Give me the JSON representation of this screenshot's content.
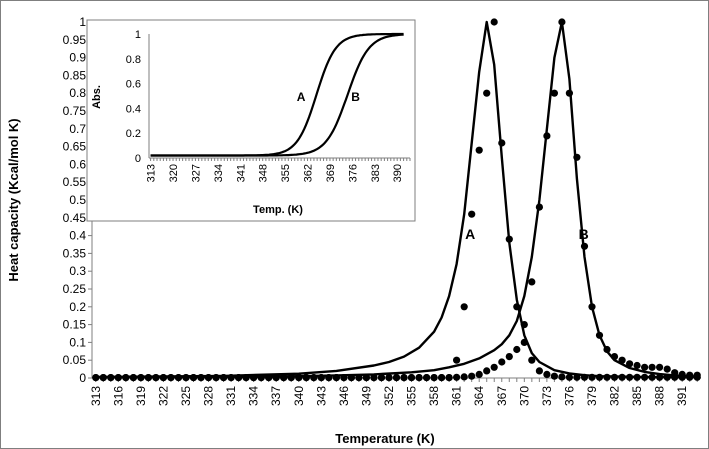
{
  "chart_data": [
    {
      "type": "line",
      "xlabel": "Temperature (K)",
      "ylabel": "Heat capacity (Kcal/mol K)",
      "ylim": [
        0,
        1
      ],
      "y_ticks": [
        "0",
        "0.05",
        "0.1",
        "0.15",
        "0.2",
        "0.25",
        "0.3",
        "0.35",
        "0.4",
        "0.45",
        "0.5",
        "0.55",
        "0.6",
        "0.65",
        "0.7",
        "0.75",
        "0.8",
        "0.85",
        "0.9",
        "0.95",
        "1"
      ],
      "x_ticks": [
        "313",
        "316",
        "319",
        "322",
        "325",
        "328",
        "331",
        "334",
        "337",
        "340",
        "343",
        "346",
        "349",
        "352",
        "355",
        "358",
        "361",
        "364",
        "367",
        "370",
        "373",
        "376",
        "379",
        "382",
        "385",
        "388",
        "391"
      ],
      "x_range": [
        312.5,
        393.5
      ],
      "series": [
        {
          "name": "A",
          "style": "line",
          "color": "#000000",
          "tm": 365,
          "x": [
            313,
            320,
            330,
            340,
            345,
            350,
            352,
            354,
            356,
            358,
            359,
            360,
            361,
            362,
            363,
            364,
            365,
            366,
            367,
            368,
            369,
            370,
            371,
            372,
            374,
            376,
            378,
            380,
            385,
            390,
            393
          ],
          "y": [
            0.003,
            0.004,
            0.006,
            0.012,
            0.02,
            0.035,
            0.045,
            0.06,
            0.085,
            0.13,
            0.17,
            0.23,
            0.32,
            0.46,
            0.66,
            0.86,
            1.0,
            0.88,
            0.62,
            0.38,
            0.22,
            0.12,
            0.07,
            0.045,
            0.022,
            0.013,
            0.008,
            0.005,
            0.003,
            0.002,
            0.002
          ]
        },
        {
          "name": "A",
          "style": "markers",
          "color": "#000000",
          "x": [
            313,
            314,
            315,
            316,
            317,
            318,
            319,
            320,
            321,
            322,
            323,
            324,
            325,
            326,
            327,
            328,
            329,
            330,
            331,
            332,
            333,
            334,
            335,
            336,
            337,
            338,
            339,
            340,
            341,
            342,
            343,
            344,
            345,
            346,
            347,
            348,
            349,
            350,
            351,
            352,
            353,
            354,
            355,
            356,
            357,
            358,
            359,
            360,
            361,
            362,
            363,
            364,
            365,
            366,
            367,
            368,
            369,
            370,
            371,
            372,
            373,
            374,
            375,
            376,
            377,
            378,
            379,
            380,
            381,
            382,
            383,
            384,
            385,
            386,
            387,
            388,
            389,
            390,
            391,
            392,
            393
          ],
          "y": [
            0.001,
            0.001,
            0.001,
            0.001,
            0.001,
            0.001,
            0.001,
            0.001,
            0.001,
            0.001,
            0.001,
            0.001,
            0.001,
            0.001,
            0.001,
            0.001,
            0.001,
            0.001,
            0.001,
            0.001,
            0.001,
            0.001,
            0.001,
            0.001,
            0.001,
            0.001,
            0.001,
            0.001,
            0.001,
            0.001,
            0.001,
            0.001,
            0.001,
            0.001,
            0.001,
            0.001,
            0.001,
            0.001,
            0.001,
            0.001,
            0.001,
            0.001,
            0.001,
            0.001,
            0.001,
            0.001,
            0.001,
            0.001,
            0.05,
            0.2,
            0.46,
            0.64,
            0.8,
            1.0,
            0.66,
            0.39,
            0.2,
            0.1,
            0.05,
            0.02,
            0.01,
            0.005,
            0.003,
            0.002,
            0.002,
            0.002,
            0.002,
            0.002,
            0.002,
            0.002,
            0.002,
            0.002,
            0.002,
            0.002,
            0.002,
            0.002,
            0.002,
            0.002,
            0.002,
            0.002,
            0.002
          ]
        },
        {
          "name": "B",
          "style": "line",
          "color": "#000000",
          "tm": 375,
          "x": [
            313,
            320,
            330,
            340,
            345,
            350,
            355,
            358,
            360,
            362,
            364,
            366,
            367,
            368,
            369,
            370,
            371,
            372,
            373,
            374,
            375,
            376,
            377,
            378,
            379,
            380,
            381,
            382,
            384,
            386,
            388,
            390,
            393
          ],
          "y": [
            0.002,
            0.002,
            0.003,
            0.005,
            0.007,
            0.01,
            0.016,
            0.022,
            0.03,
            0.04,
            0.055,
            0.078,
            0.095,
            0.12,
            0.16,
            0.23,
            0.34,
            0.5,
            0.7,
            0.9,
            1.0,
            0.84,
            0.56,
            0.34,
            0.2,
            0.12,
            0.075,
            0.05,
            0.028,
            0.017,
            0.011,
            0.007,
            0.004
          ]
        },
        {
          "name": "B",
          "style": "markers",
          "color": "#000000",
          "x": [
            313,
            314,
            315,
            316,
            317,
            318,
            319,
            320,
            321,
            322,
            323,
            324,
            325,
            326,
            327,
            328,
            329,
            330,
            331,
            332,
            333,
            334,
            335,
            336,
            337,
            338,
            339,
            340,
            341,
            342,
            343,
            344,
            345,
            346,
            347,
            348,
            349,
            350,
            351,
            352,
            353,
            354,
            355,
            356,
            357,
            358,
            359,
            360,
            361,
            362,
            363,
            364,
            365,
            366,
            367,
            368,
            369,
            370,
            371,
            372,
            373,
            374,
            375,
            376,
            377,
            378,
            379,
            380,
            381,
            382,
            383,
            384,
            385,
            386,
            387,
            388,
            389,
            390,
            391,
            392,
            393
          ],
          "y": [
            0.001,
            0.001,
            0.001,
            0.001,
            0.001,
            0.001,
            0.001,
            0.001,
            0.001,
            0.001,
            0.001,
            0.001,
            0.001,
            0.001,
            0.001,
            0.001,
            0.001,
            0.001,
            0.001,
            0.001,
            0.001,
            0.001,
            0.001,
            0.001,
            0.001,
            0.001,
            0.001,
            0.001,
            0.001,
            0.001,
            0.001,
            0.001,
            0.001,
            0.001,
            0.001,
            0.001,
            0.001,
            0.001,
            0.001,
            0.001,
            0.001,
            0.001,
            0.001,
            0.001,
            0.001,
            0.001,
            0.001,
            0.001,
            0.002,
            0.003,
            0.005,
            0.01,
            0.02,
            0.03,
            0.045,
            0.06,
            0.08,
            0.15,
            0.27,
            0.48,
            0.68,
            0.8,
            1.0,
            0.8,
            0.62,
            0.37,
            0.2,
            0.12,
            0.08,
            0.06,
            0.05,
            0.04,
            0.035,
            0.03,
            0.03,
            0.03,
            0.025,
            0.015,
            0.01,
            0.008,
            0.008
          ]
        }
      ],
      "curve_labels": [
        {
          "text": "A",
          "x": 362.8,
          "y": 0.39
        },
        {
          "text": "B",
          "x": 377.9,
          "y": 0.39
        }
      ]
    },
    {
      "type": "line",
      "xlabel": "Temp. (K)",
      "ylabel": "Abs.",
      "ylim": [
        0,
        1
      ],
      "y_ticks": [
        "0",
        "0.2",
        "0.4",
        "0.6",
        "0.8",
        "1"
      ],
      "x_ticks": [
        "313",
        "320",
        "327",
        "334",
        "341",
        "348",
        "355",
        "362",
        "369",
        "376",
        "383",
        "390"
      ],
      "x_range": [
        312.5,
        394
      ],
      "series": [
        {
          "name": "A",
          "style": "line",
          "color": "#000000",
          "tm": 364.8,
          "width": 3.0
        },
        {
          "name": "B",
          "style": "line",
          "color": "#000000",
          "tm": 374.5,
          "width": 3.3
        }
      ],
      "curve_labels": [
        {
          "text": "A",
          "x": 360,
          "y": 0.46
        },
        {
          "text": "B",
          "x": 377,
          "y": 0.46
        }
      ]
    }
  ]
}
